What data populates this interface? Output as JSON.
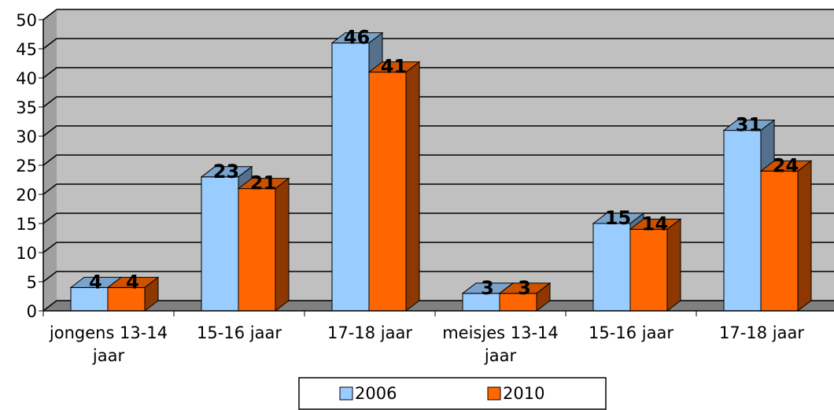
{
  "chart_data": {
    "type": "bar3d",
    "categories": [
      "jongens 13-14 jaar",
      "15-16 jaar",
      "17-18 jaar",
      "meisjes 13-14 jaar",
      "15-16 jaar",
      "17-18 jaar"
    ],
    "series": [
      {
        "name": "2006",
        "color": "#99ccff",
        "values": [
          4,
          23,
          46,
          3,
          15,
          31
        ]
      },
      {
        "name": "2010",
        "color": "#ff6600",
        "values": [
          4,
          21,
          41,
          3,
          14,
          24
        ]
      }
    ],
    "ylim": [
      0,
      50
    ],
    "yticks": [
      0,
      5,
      10,
      15,
      20,
      25,
      30,
      35,
      40,
      45,
      50
    ],
    "grid": true,
    "legend": "bottom"
  }
}
